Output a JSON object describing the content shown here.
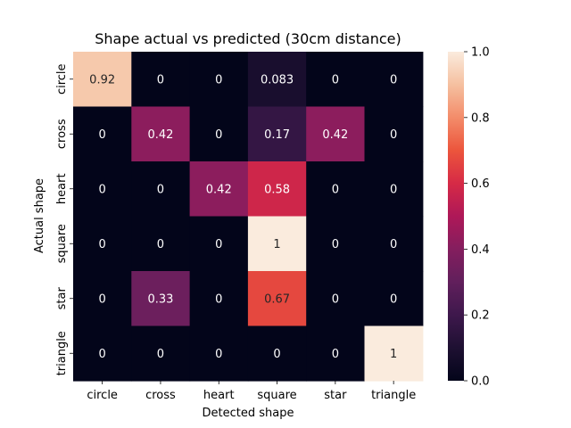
{
  "chart_data": {
    "type": "heatmap",
    "title": "Shape actual vs predicted (30cm distance)",
    "xlabel": "Detected shape",
    "ylabel": "Actual shape",
    "x_categories": [
      "circle",
      "cross",
      "heart",
      "square",
      "star",
      "triangle"
    ],
    "y_categories": [
      "circle",
      "cross",
      "heart",
      "square",
      "star",
      "triangle"
    ],
    "values": [
      [
        0.92,
        0,
        0,
        0.083,
        0,
        0
      ],
      [
        0,
        0.42,
        0,
        0.17,
        0.42,
        0
      ],
      [
        0,
        0,
        0.42,
        0.58,
        0,
        0
      ],
      [
        0,
        0,
        0,
        1,
        0,
        0
      ],
      [
        0,
        0.33,
        0,
        0.67,
        0,
        0
      ],
      [
        0,
        0,
        0,
        0,
        0,
        1
      ]
    ],
    "cell_labels": [
      [
        "0.92",
        "0",
        "0",
        "0.083",
        "0",
        "0"
      ],
      [
        "0",
        "0.42",
        "0",
        "0.17",
        "0.42",
        "0"
      ],
      [
        "0",
        "0",
        "0.42",
        "0.58",
        "0",
        "0"
      ],
      [
        "0",
        "0",
        "0",
        "1",
        "0",
        "0"
      ],
      [
        "0",
        "0.33",
        "0",
        "0.67",
        "0",
        "0"
      ],
      [
        "0",
        "0",
        "0",
        "0",
        "0",
        "1"
      ]
    ],
    "colorbar": {
      "range": [
        0,
        1
      ],
      "ticks": [
        "0.0",
        "0.2",
        "0.4",
        "0.6",
        "0.8",
        "1.0"
      ],
      "colormap": "rocket"
    },
    "grid": false
  }
}
